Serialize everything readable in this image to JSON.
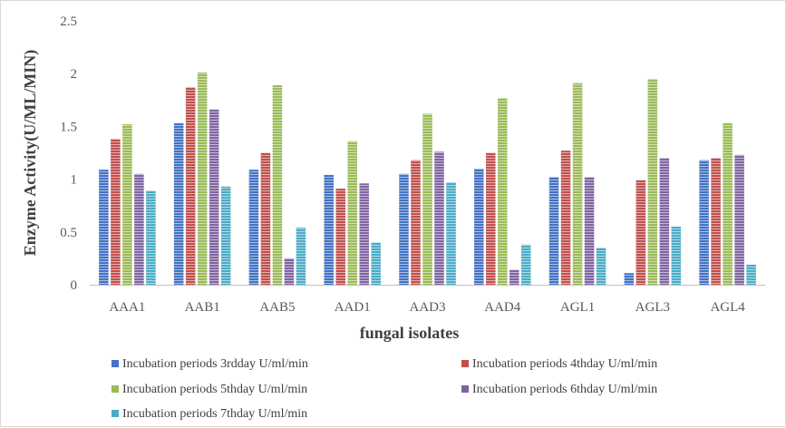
{
  "chart_data": {
    "type": "bar",
    "title": "",
    "xlabel": "fungal isolates",
    "ylabel": "Enzyme Activity(U/ML/MIN)",
    "ylim": [
      0,
      2.5
    ],
    "yticks": [
      "0",
      "0.5",
      "1",
      "1.5",
      "2",
      "2.5"
    ],
    "grid": false,
    "legend_position": "bottom",
    "categories": [
      "AAA1",
      "AAB1",
      "AAB5",
      "AAD1",
      "AAD3",
      "AAD4",
      "AGL1",
      "AGL3",
      "AGL4"
    ],
    "series": [
      {
        "name": "Incubation periods 3rdday U/ml/min",
        "color": "#4472c4",
        "values": [
          1.09,
          1.53,
          1.09,
          1.04,
          1.05,
          1.1,
          1.02,
          0.11,
          1.18
        ]
      },
      {
        "name": "Incubation periods 4thday U/ml/min",
        "color": "#c0504d",
        "values": [
          1.38,
          1.87,
          1.25,
          0.91,
          1.18,
          1.25,
          1.27,
          0.99,
          1.2
        ]
      },
      {
        "name": "Incubation periods 5thday U/ml/min",
        "color": "#9bbb59",
        "values": [
          1.52,
          2.01,
          1.89,
          1.36,
          1.62,
          1.77,
          1.91,
          1.95,
          1.53
        ]
      },
      {
        "name": "Incubation periods 6thday U/ml/min",
        "color": "#8064a2",
        "values": [
          1.05,
          1.66,
          0.25,
          0.96,
          1.26,
          0.14,
          1.02,
          1.2,
          1.23
        ]
      },
      {
        "name": "Incubation periods 7thday U/ml/min",
        "color": "#4bacc6",
        "values": [
          0.89,
          0.93,
          0.54,
          0.4,
          0.97,
          0.38,
          0.35,
          0.55,
          0.19
        ]
      }
    ]
  }
}
